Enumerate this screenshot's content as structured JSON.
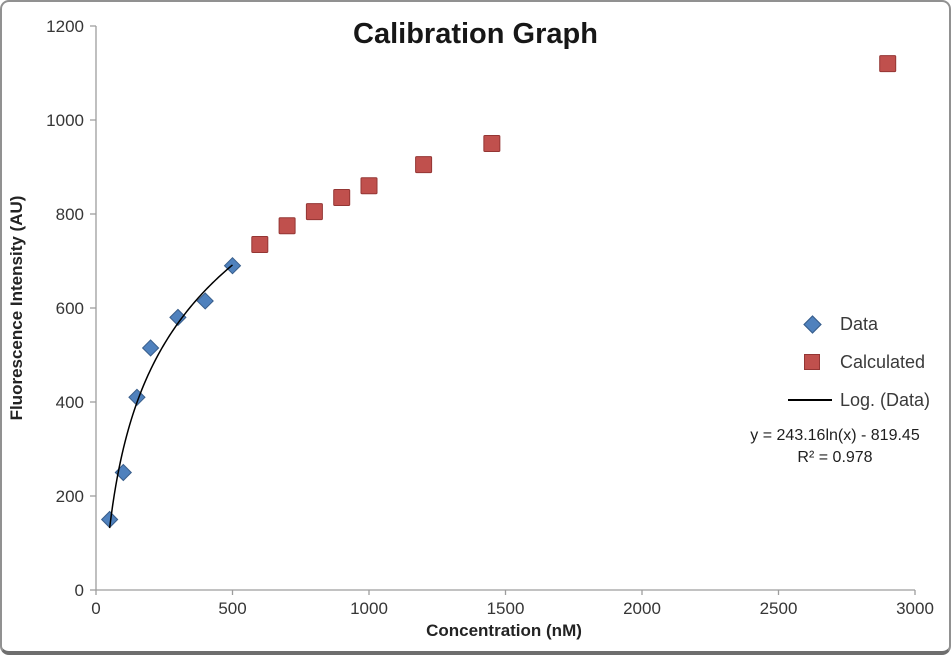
{
  "frame": {
    "background": "#ffffff",
    "border_color": "#919191"
  },
  "chart_data": {
    "type": "scatter",
    "title": "Calibration Graph",
    "xlabel": "Concentration (nM)",
    "ylabel": "Fluorescence Intensity (AU)",
    "xlim": [
      0,
      3000
    ],
    "ylim": [
      0,
      1200
    ],
    "x_ticks": [
      0,
      500,
      1000,
      1500,
      2000,
      2500,
      3000
    ],
    "y_ticks": [
      0,
      200,
      400,
      600,
      800,
      1000,
      1200
    ],
    "grid": false,
    "legend_position": "middle-right",
    "series": [
      {
        "name": "Data",
        "marker": "diamond",
        "color": "#4F81BD",
        "stroke": "#385D8A",
        "x": [
          50,
          100,
          150,
          200,
          300,
          400,
          500
        ],
        "y": [
          150,
          250,
          410,
          515,
          580,
          615,
          690
        ]
      },
      {
        "name": "Calculated",
        "marker": "square",
        "color": "#C0504D",
        "stroke": "#943634",
        "x": [
          600,
          700,
          800,
          900,
          1000,
          1200,
          1450,
          2900
        ],
        "y": [
          735,
          775,
          805,
          835,
          860,
          905,
          950,
          1120
        ]
      }
    ],
    "trendline": {
      "name": "Log. (Data)",
      "type": "logarithmic",
      "slope": 243.16,
      "intercept": -819.45,
      "domain": [
        50,
        500
      ],
      "color": "#000000",
      "equation_text": "y = 243.16ln(x) - 819.45",
      "r_squared_text": "R² = 0.978"
    },
    "axis_style": {
      "axis_line_color": "#9d9d9d",
      "tick_label_color": "#363636"
    }
  }
}
